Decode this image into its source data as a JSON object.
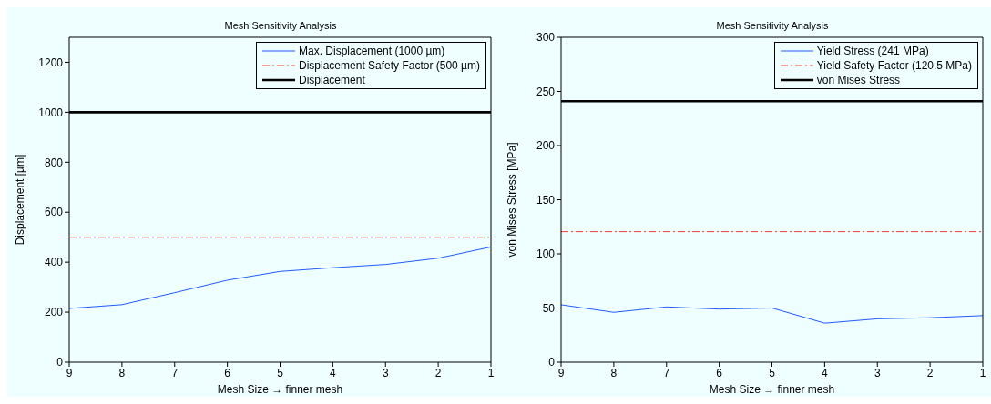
{
  "chart_data": [
    {
      "type": "line",
      "title": "Mesh Sensitivity Analysis",
      "xlabel": "Mesh Size → finner mesh",
      "ylabel": "Displacement [µm]",
      "xlim": [
        9,
        1
      ],
      "xticks": [
        9,
        8,
        7,
        6,
        5,
        4,
        3,
        2,
        1
      ],
      "ylim": [
        0,
        1300
      ],
      "yticks": [
        0,
        200,
        400,
        600,
        800,
        1000,
        1200
      ],
      "grid": false,
      "legend": "top right",
      "series": [
        {
          "name": "Max. Displacement (1000 µm)",
          "color": "#1f5cff",
          "line_style": "solid",
          "x": [
            9,
            8,
            7,
            6,
            5,
            4,
            3,
            2,
            1
          ],
          "values": [
            215,
            230,
            278,
            328,
            363,
            378,
            391,
            416,
            461
          ]
        },
        {
          "name": "Displacement Safety Factor (500 µm)",
          "color": "#ff3b2f",
          "line_style": "dashed",
          "x": [
            9,
            1
          ],
          "values": [
            500,
            500
          ]
        },
        {
          "name": "Displacement",
          "color": "#000000",
          "line_style": "solid",
          "x": [
            9,
            1
          ],
          "values": [
            1000,
            1000
          ]
        }
      ]
    },
    {
      "type": "line",
      "title": "Mesh Sensitivity Analysis",
      "xlabel": "Mesh Size → finner mesh",
      "ylabel": "von Mises Stress [MPa]",
      "xlim": [
        9,
        1
      ],
      "xticks": [
        9,
        8,
        7,
        6,
        5,
        4,
        3,
        2,
        1
      ],
      "ylim": [
        0,
        300
      ],
      "yticks": [
        0,
        50,
        100,
        150,
        200,
        250,
        300
      ],
      "grid": false,
      "legend": "top right",
      "series": [
        {
          "name": "Yield Stress (241 MPa)",
          "color": "#1f5cff",
          "line_style": "solid",
          "x": [
            9,
            8,
            7,
            6,
            5,
            4,
            3,
            2,
            1
          ],
          "values": [
            53,
            46,
            51,
            49,
            50,
            36,
            40,
            41,
            43
          ]
        },
        {
          "name": "Yield Safety Factor (120.5 MPa)",
          "color": "#ff3b2f",
          "line_style": "dashed",
          "x": [
            9,
            1
          ],
          "values": [
            120.5,
            120.5
          ]
        },
        {
          "name": "von Mises Stress",
          "color": "#000000",
          "line_style": "solid",
          "x": [
            9,
            1
          ],
          "values": [
            241,
            241
          ]
        }
      ]
    }
  ]
}
